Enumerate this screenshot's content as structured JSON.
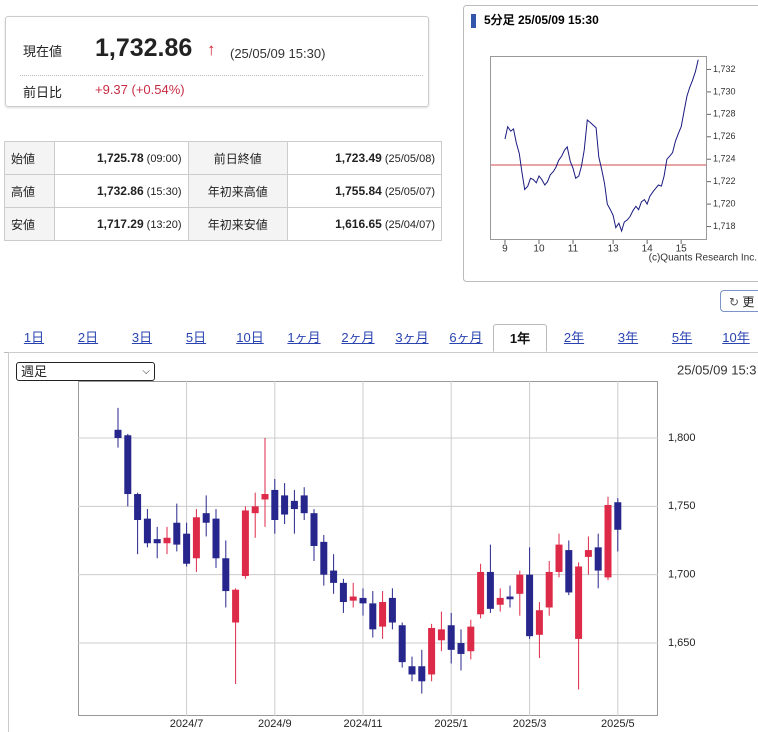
{
  "quote": {
    "label": "現在値",
    "price": "1,732.86",
    "arrow": "↑",
    "time": "(25/05/09 15:30)",
    "change_label": "前日比",
    "change": "+9.37 (+0.54%)"
  },
  "summary_table": {
    "rows": [
      [
        "始値",
        "1,725.78",
        "(09:00)",
        "前日終値",
        "1,723.49",
        "(25/05/08)"
      ],
      [
        "高値",
        "1,732.86",
        "(15:30)",
        "年初来高値",
        "1,755.84",
        "(25/05/07)"
      ],
      [
        "安値",
        "1,717.29",
        "(13:20)",
        "年初来安値",
        "1,616.65",
        "(25/04/07)"
      ]
    ]
  },
  "refresh_button": "更",
  "period_tabs": {
    "items": [
      "1日",
      "2日",
      "3日",
      "5日",
      "10日",
      "1ヶ月",
      "2ヶ月",
      "3ヶ月",
      "6ヶ月",
      "1年",
      "2年",
      "3年",
      "5年",
      "10年"
    ],
    "active": 9
  },
  "interval_select": "週足",
  "chart_data": [
    {
      "type": "line",
      "title": "5分足 25/05/09 15:30",
      "credit": "(c)Quants Research Inc.",
      "color": "#1a1a80",
      "ref_line": 1723.49,
      "ref_color": "#d04848",
      "x": [
        9.0,
        9.08,
        9.17,
        9.25,
        9.33,
        9.42,
        9.5,
        9.58,
        9.67,
        9.75,
        9.83,
        9.92,
        10.0,
        10.08,
        10.17,
        10.25,
        10.33,
        10.42,
        10.5,
        10.58,
        10.67,
        10.75,
        10.83,
        10.92,
        11.0,
        11.08,
        11.17,
        11.25,
        11.33,
        11.42,
        11.5,
        12.5,
        12.58,
        12.67,
        12.75,
        12.83,
        12.92,
        13.0,
        13.08,
        13.17,
        13.25,
        13.33,
        13.42,
        13.5,
        13.58,
        13.67,
        13.75,
        13.83,
        13.92,
        14.0,
        14.08,
        14.17,
        14.25,
        14.33,
        14.42,
        14.5,
        14.58,
        14.67,
        14.75,
        14.83,
        14.92,
        15.0,
        15.08,
        15.17,
        15.25,
        15.33,
        15.42,
        15.5
      ],
      "values": [
        1725.8,
        1726.9,
        1726.5,
        1726.7,
        1725.5,
        1724.5,
        1722.8,
        1721.3,
        1721.6,
        1722.3,
        1722.2,
        1721.9,
        1722.5,
        1722.2,
        1721.7,
        1722.0,
        1722.6,
        1722.9,
        1723.3,
        1723.9,
        1724.3,
        1724.8,
        1725.1,
        1723.8,
        1723.2,
        1722.3,
        1722.5,
        1723.4,
        1724.8,
        1727.5,
        1727.3,
        1726.8,
        1724.2,
        1723.0,
        1721.8,
        1720.0,
        1719.5,
        1719.0,
        1717.9,
        1718.3,
        1717.6,
        1718.4,
        1718.6,
        1718.9,
        1719.4,
        1719.8,
        1719.5,
        1720.2,
        1720.4,
        1720.0,
        1720.7,
        1721.1,
        1721.4,
        1721.7,
        1721.6,
        1722.5,
        1724.0,
        1724.3,
        1724.6,
        1725.6,
        1726.3,
        1726.9,
        1728.2,
        1729.6,
        1730.4,
        1731.0,
        1731.8,
        1732.86
      ],
      "xlim": [
        8.56,
        15.76
      ],
      "xticks": [
        9,
        10,
        11,
        13,
        14,
        15
      ],
      "ylim": [
        1716.8,
        1733.2
      ],
      "yticks": [
        {
          "value": 1718,
          "label": "1,718"
        },
        {
          "value": 1720,
          "label": "1,720"
        },
        {
          "value": 1722,
          "label": "1,722"
        },
        {
          "value": 1724,
          "label": "1,724"
        },
        {
          "value": 1726,
          "label": "1,726"
        },
        {
          "value": 1728,
          "label": "1,728"
        },
        {
          "value": 1730,
          "label": "1,730"
        },
        {
          "value": 1732,
          "label": "1,732"
        }
      ]
    },
    {
      "type": "candlestick",
      "timestamp": "25/05/09 15:3",
      "up_color": "#dd2a48",
      "down_color": "#26268c",
      "grid": true,
      "categories": [
        null,
        null,
        null,
        null,
        null,
        null,
        null,
        "2024/7",
        null,
        null,
        null,
        null,
        null,
        null,
        null,
        null,
        "2024/9",
        null,
        null,
        null,
        null,
        null,
        null,
        null,
        null,
        "2024/11",
        null,
        null,
        null,
        null,
        null,
        null,
        null,
        null,
        "2025/1",
        null,
        null,
        null,
        null,
        null,
        null,
        null,
        "2025/3",
        null,
        null,
        null,
        null,
        null,
        null,
        null,
        null,
        "2025/5"
      ],
      "open": [
        1806,
        1802,
        1759,
        1741,
        1726,
        1723,
        1738,
        1730,
        1712,
        1745,
        1741,
        1712,
        1665,
        1699,
        1745,
        1755,
        1762,
        1758,
        1754,
        1758,
        1745,
        1724,
        1703,
        1694,
        1681,
        1683,
        1679,
        1662,
        1683,
        1663,
        1633,
        1633,
        1627,
        1652,
        1663,
        1650,
        1644,
        1671,
        1702,
        1678,
        1684,
        1686,
        1700,
        1656,
        1676,
        1702,
        1718,
        1653,
        1713,
        1720,
        1698,
        1753
      ],
      "high": [
        1822,
        1803,
        1760,
        1748,
        1735,
        1735,
        1752,
        1738,
        1748,
        1758,
        1748,
        1725,
        1690,
        1750,
        1760,
        1800,
        1770,
        1767,
        1762,
        1764,
        1748,
        1729,
        1715,
        1697,
        1694,
        1690,
        1688,
        1688,
        1690,
        1665,
        1640,
        1645,
        1664,
        1673,
        1672,
        1660,
        1667,
        1708,
        1722,
        1690,
        1692,
        1703,
        1720,
        1680,
        1710,
        1730,
        1725,
        1709,
        1728,
        1730,
        1757,
        1756
      ],
      "low": [
        1793,
        1750,
        1715,
        1720,
        1712,
        1715,
        1717,
        1706,
        1702,
        1728,
        1705,
        1676,
        1620,
        1697,
        1727,
        1735,
        1730,
        1737,
        1730,
        1740,
        1710,
        1692,
        1686,
        1672,
        1676,
        1670,
        1654,
        1653,
        1660,
        1632,
        1622,
        1613,
        1622,
        1644,
        1635,
        1630,
        1638,
        1668,
        1672,
        1673,
        1676,
        1670,
        1653,
        1639,
        1670,
        1698,
        1685,
        1616,
        1700,
        1690,
        1696,
        1717
      ],
      "close": [
        1800,
        1759,
        1740,
        1723,
        1723,
        1727,
        1722,
        1708,
        1742,
        1738,
        1712,
        1688,
        1689,
        1747,
        1750,
        1759,
        1740,
        1744,
        1748,
        1745,
        1721,
        1700,
        1694,
        1680,
        1684,
        1679,
        1660,
        1680,
        1665,
        1636,
        1627,
        1622,
        1661,
        1660,
        1645,
        1642,
        1662,
        1702,
        1675,
        1683,
        1682,
        1700,
        1655,
        1674,
        1702,
        1722,
        1687,
        1706,
        1718,
        1703,
        1751,
        1732.86
      ],
      "ylim": [
        1596.6,
        1841.7
      ],
      "yticks": [
        {
          "value": 1650,
          "label": "1,650"
        },
        {
          "value": 1700,
          "label": "1,700"
        },
        {
          "value": 1750,
          "label": "1,750"
        },
        {
          "value": 1800,
          "label": "1,800"
        }
      ]
    }
  ]
}
